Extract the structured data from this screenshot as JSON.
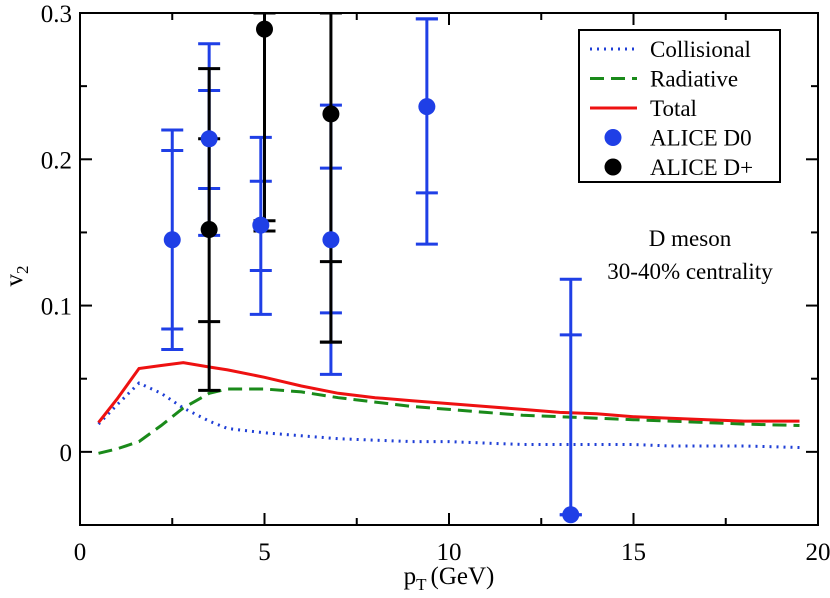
{
  "chart_data": {
    "type": "line",
    "xlabel": "p",
    "xlabel_sub": "T",
    "xlabel_unit": "(GeV)",
    "ylabel": "v",
    "ylabel_sub": "2",
    "xlim": [
      0,
      20
    ],
    "ylim": [
      -0.05,
      0.3
    ],
    "xticks": [
      0,
      5,
      10,
      15,
      20
    ],
    "xtick_labels": [
      "0",
      "5",
      "10",
      "15",
      "20"
    ],
    "yticks": [
      0,
      0.1,
      0.2,
      0.3
    ],
    "ytick_labels": [
      "0",
      "0.1",
      "0.2",
      "0.3"
    ],
    "grid": false,
    "legend_position": "top-right",
    "annotations": [
      "D meson",
      "30-40% centrality"
    ],
    "colors": {
      "collisional": "#1f3fd6",
      "radiative": "#1a8a1a",
      "total": "#ee1111",
      "alice_d0": "#1f3fe6",
      "alice_dplus": "#000000"
    },
    "curves": [
      {
        "name": "Collisional",
        "style": "dotted",
        "x": [
          0.5,
          1.0,
          1.6,
          2.2,
          2.8,
          3.5,
          4.0,
          5.0,
          6.0,
          7.0,
          8.0,
          9.0,
          10.0,
          11.0,
          12.0,
          13.0,
          14.0,
          15.0,
          16.0,
          17.0,
          18.0,
          19.5
        ],
        "y": [
          0.019,
          0.032,
          0.047,
          0.04,
          0.03,
          0.021,
          0.016,
          0.013,
          0.011,
          0.009,
          0.008,
          0.007,
          0.007,
          0.006,
          0.005,
          0.005,
          0.005,
          0.005,
          0.004,
          0.004,
          0.004,
          0.003
        ]
      },
      {
        "name": "Radiative",
        "style": "dashed",
        "x": [
          0.5,
          1.0,
          1.6,
          2.2,
          2.8,
          3.5,
          4.0,
          5.0,
          6.0,
          7.0,
          8.0,
          9.0,
          10.0,
          11.0,
          12.0,
          13.0,
          14.0,
          15.0,
          16.0,
          17.0,
          18.0,
          19.5
        ],
        "y": [
          -0.001,
          0.002,
          0.007,
          0.018,
          0.03,
          0.04,
          0.043,
          0.043,
          0.041,
          0.037,
          0.034,
          0.031,
          0.029,
          0.027,
          0.025,
          0.024,
          0.023,
          0.022,
          0.021,
          0.02,
          0.019,
          0.018
        ]
      },
      {
        "name": "Total",
        "style": "solid",
        "x": [
          0.5,
          1.0,
          1.6,
          2.2,
          2.8,
          3.5,
          4.0,
          5.0,
          6.0,
          7.0,
          8.0,
          9.0,
          10.0,
          11.0,
          12.0,
          13.0,
          14.0,
          15.0,
          16.0,
          17.0,
          18.0,
          19.5
        ],
        "y": [
          0.02,
          0.036,
          0.057,
          0.059,
          0.061,
          0.058,
          0.056,
          0.051,
          0.045,
          0.04,
          0.037,
          0.035,
          0.033,
          0.031,
          0.029,
          0.027,
          0.026,
          0.024,
          0.023,
          0.022,
          0.021,
          0.021
        ]
      }
    ],
    "points": [
      {
        "name": "ALICE D0",
        "x": [
          2.5,
          3.5,
          4.9,
          6.8,
          9.4,
          13.3
        ],
        "y": [
          0.145,
          0.214,
          0.155,
          0.145,
          0.236,
          -0.043
        ],
        "err_inner": [
          [
            0.084,
            0.206
          ],
          [
            0.18,
            0.247
          ],
          [
            0.124,
            0.185
          ],
          [
            0.095,
            0.194
          ],
          [
            0.177,
            0.296
          ],
          [
            -0.043,
            0.08
          ]
        ],
        "err_outer": [
          [
            0.07,
            0.22
          ],
          [
            0.148,
            0.279
          ],
          [
            0.094,
            0.215
          ],
          [
            0.053,
            0.237
          ],
          [
            0.142,
            0.296
          ],
          [
            -0.043,
            0.118
          ]
        ]
      },
      {
        "name": "ALICE D+",
        "x": [
          3.5,
          5.0,
          6.8
        ],
        "y": [
          0.152,
          0.289,
          0.231
        ],
        "err_inner": [
          [
            0.089,
            0.214
          ],
          [
            0.158,
            0.3
          ],
          [
            0.075,
            0.13
          ]
        ],
        "err_outer": [
          [
            0.042,
            0.262
          ],
          [
            0.151,
            0.3
          ],
          [
            0.075,
            0.3
          ]
        ]
      }
    ]
  }
}
